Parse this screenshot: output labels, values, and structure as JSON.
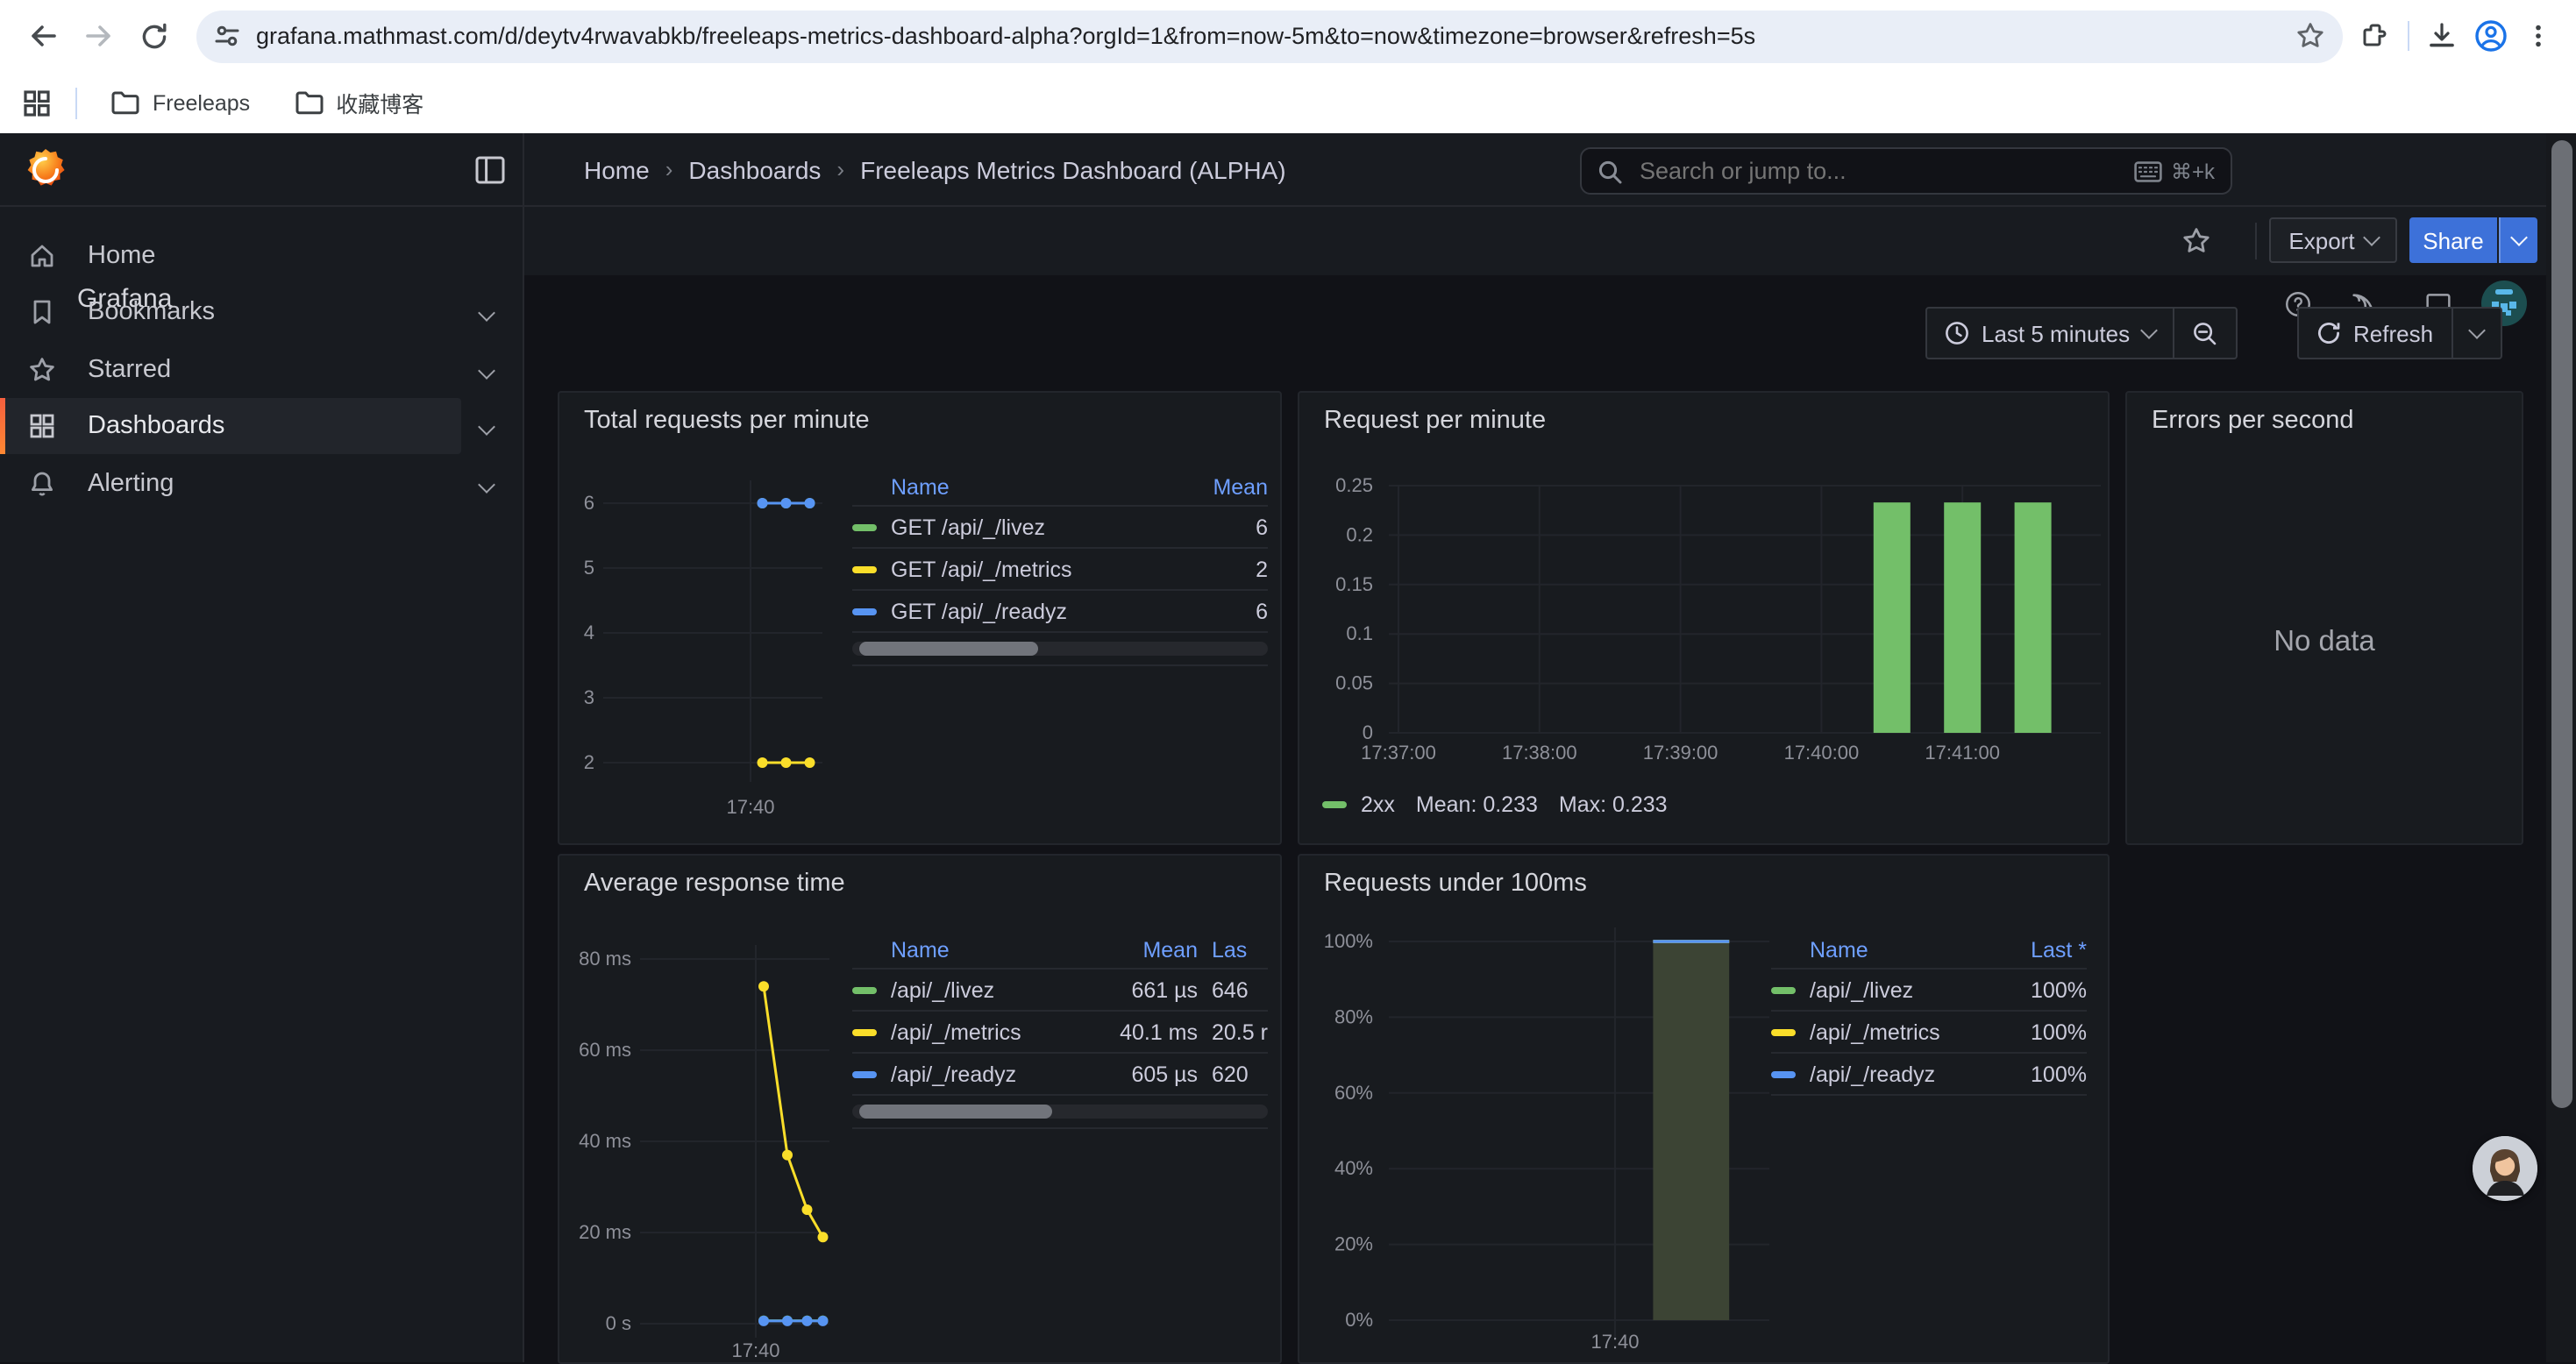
{
  "browser": {
    "url": "grafana.mathmast.com/d/deytv4rwavabkb/freeleaps-metrics-dashboard-alpha?orgId=1&from=now-5m&to=now&timezone=browser&refresh=5s",
    "bookmarks": [
      {
        "label": "Freeleaps"
      },
      {
        "label": "收藏博客"
      }
    ]
  },
  "icons": {
    "browser": [
      "back-arrow",
      "forward-arrow",
      "reload",
      "tune",
      "bookmark-star",
      "extensions-puzzle",
      "download",
      "profile",
      "kebab-menu",
      "apps-grid",
      "folder"
    ],
    "grafana": [
      "grafana-logo",
      "sidebar-toggle",
      "home",
      "bookmark",
      "star",
      "dashboards-grid",
      "alerting-bell",
      "search-magnifier",
      "keyboard",
      "help-circle",
      "rss",
      "monitor",
      "user-avatar",
      "clock",
      "zoom-out-magnifier",
      "refresh-arrows"
    ]
  },
  "sidebar": {
    "brand": "Grafana",
    "items": [
      {
        "label": "Home",
        "expandable": false,
        "active": false
      },
      {
        "label": "Bookmarks",
        "expandable": true,
        "active": false
      },
      {
        "label": "Starred",
        "expandable": true,
        "active": false
      },
      {
        "label": "Dashboards",
        "expandable": true,
        "active": true
      },
      {
        "label": "Alerting",
        "expandable": true,
        "active": false
      }
    ]
  },
  "header": {
    "breadcrumb": [
      {
        "label": "Home"
      },
      {
        "label": "Dashboards"
      },
      {
        "label": "Freeleaps Metrics Dashboard (ALPHA)"
      }
    ],
    "breadcrumb_separator": "›",
    "search": {
      "placeholder": "Search or jump to...",
      "shortcut": "⌘+k"
    }
  },
  "dash_toolbar": {
    "export_label": "Export",
    "share_label": "Share"
  },
  "time_controls": {
    "range_label": "Last 5 minutes",
    "refresh_label": "Refresh"
  },
  "colors": {
    "green": "#73BF69",
    "yellow": "#FADE2A",
    "blue": "#5794F2",
    "primary_button_blue": "#3D71D9",
    "table_header_blue": "#6E9FFF",
    "active_item_orange": "#FF8833",
    "profile_icon_blue": "#1A73E8"
  },
  "panels": {
    "total_requests": {
      "title": "Total requests per minute",
      "table": {
        "headers": [
          "Name",
          "Mean"
        ],
        "rows": [
          {
            "color": "#73BF69",
            "name": "GET /api/_/livez",
            "mean": "6"
          },
          {
            "color": "#FADE2A",
            "name": "GET /api/_/metrics",
            "mean": "2"
          },
          {
            "color": "#5794F2",
            "name": "GET /api/_/readyz",
            "mean": "6"
          }
        ]
      }
    },
    "request_per_minute": {
      "title": "Request per minute",
      "legend": {
        "color": "#73BF69",
        "name": "2xx",
        "mean": "Mean: 0.233",
        "max": "Max: 0.233"
      }
    },
    "errors_per_second": {
      "title": "Errors per second",
      "message": "No data"
    },
    "avg_response_time": {
      "title": "Average response time",
      "table": {
        "headers": [
          "Name",
          "Mean",
          "Las"
        ],
        "rows": [
          {
            "color": "#73BF69",
            "name": "/api/_/livez",
            "mean": "661 µs",
            "last": "646"
          },
          {
            "color": "#FADE2A",
            "name": "/api/_/metrics",
            "mean": "40.1 ms",
            "last": "20.5 r"
          },
          {
            "color": "#5794F2",
            "name": "/api/_/readyz",
            "mean": "605 µs",
            "last": "620"
          }
        ]
      }
    },
    "requests_under_100ms": {
      "title": "Requests under 100ms",
      "table": {
        "headers": [
          "Name",
          "Last *"
        ],
        "rows": [
          {
            "color": "#73BF69",
            "name": "/api/_/livez",
            "last": "100%"
          },
          {
            "color": "#FADE2A",
            "name": "/api/_/metrics",
            "last": "100%"
          },
          {
            "color": "#5794F2",
            "name": "/api/_/readyz",
            "last": "100%"
          }
        ]
      }
    }
  },
  "chart_data": [
    {
      "panel": "Total requests per minute",
      "type": "line",
      "x_axis": {
        "ticks": [
          "17:40"
        ]
      },
      "y_axis": {
        "ticks": [
          {
            "label": "6",
            "v": 6
          },
          {
            "label": "5",
            "v": 5
          },
          {
            "label": "4",
            "v": 4
          },
          {
            "label": "3",
            "v": 3
          },
          {
            "label": "2",
            "v": 2
          }
        ]
      },
      "series": [
        {
          "name": "GET /api/_/livez",
          "color": "#73BF69",
          "points": [
            {
              "t": "17:40:15",
              "v": 6
            },
            {
              "t": "17:40:45",
              "v": 6
            },
            {
              "t": "17:41:15",
              "v": 6
            }
          ]
        },
        {
          "name": "GET /api/_/metrics",
          "color": "#FADE2A",
          "points": [
            {
              "t": "17:40:15",
              "v": 2
            },
            {
              "t": "17:40:45",
              "v": 2
            },
            {
              "t": "17:41:15",
              "v": 2
            }
          ]
        },
        {
          "name": "GET /api/_/readyz",
          "color": "#5794F2",
          "points": [
            {
              "t": "17:40:15",
              "v": 6
            },
            {
              "t": "17:40:45",
              "v": 6
            },
            {
              "t": "17:41:15",
              "v": 6
            }
          ]
        }
      ],
      "note": "green livez line hidden beneath blue readyz line at y=6"
    },
    {
      "panel": "Request per minute",
      "type": "bar",
      "x_axis": {
        "ticks": [
          "17:37:00",
          "17:38:00",
          "17:39:00",
          "17:40:00",
          "17:41:00"
        ]
      },
      "y_axis": {
        "range": [
          0,
          0.25
        ],
        "ticks": [
          {
            "label": "0.25",
            "v": 0.25
          },
          {
            "label": "0.2",
            "v": 0.2
          },
          {
            "label": "0.15",
            "v": 0.15
          },
          {
            "label": "0.1",
            "v": 0.1
          },
          {
            "label": "0.05",
            "v": 0.05
          },
          {
            "label": "0",
            "v": 0
          }
        ]
      },
      "series": [
        {
          "name": "2xx",
          "color": "#73BF69",
          "mean": 0.233,
          "max": 0.233,
          "points": [
            {
              "t": "17:40:30",
              "v": 0.233
            },
            {
              "t": "17:41:00",
              "v": 0.233
            },
            {
              "t": "17:41:30",
              "v": 0.233
            }
          ]
        }
      ]
    },
    {
      "panel": "Errors per second",
      "type": "none",
      "message": "No data"
    },
    {
      "panel": "Average response time",
      "type": "line",
      "x_axis": {
        "ticks": [
          "17:40"
        ]
      },
      "y_axis": {
        "range_ms": [
          0,
          80
        ],
        "ticks": [
          {
            "label": "80 ms",
            "v": 80
          },
          {
            "label": "60 ms",
            "v": 60
          },
          {
            "label": "40 ms",
            "v": 40
          },
          {
            "label": "20 ms",
            "v": 20
          },
          {
            "label": "0 s",
            "v": 0
          }
        ]
      },
      "series": [
        {
          "name": "/api/_/metrics",
          "color": "#FADE2A",
          "points": [
            {
              "t": "17:40:10",
              "v": 74
            },
            {
              "t": "17:40:40",
              "v": 37
            },
            {
              "t": "17:41:05",
              "v": 25
            },
            {
              "t": "17:41:25",
              "v": 19
            }
          ]
        },
        {
          "name": "/api/_/livez",
          "color": "#73BF69",
          "points": [
            {
              "t": "17:40:10",
              "v": 0.66
            },
            {
              "t": "17:40:40",
              "v": 0.66
            },
            {
              "t": "17:41:05",
              "v": 0.66
            },
            {
              "t": "17:41:25",
              "v": 0.66
            }
          ]
        },
        {
          "name": "/api/_/readyz",
          "color": "#5794F2",
          "points": [
            {
              "t": "17:40:10",
              "v": 0.6
            },
            {
              "t": "17:40:40",
              "v": 0.6
            },
            {
              "t": "17:41:05",
              "v": 0.6
            },
            {
              "t": "17:41:25",
              "v": 0.6
            }
          ]
        }
      ]
    },
    {
      "panel": "Requests under 100ms",
      "type": "bar",
      "x_axis": {
        "ticks": [
          "17:40"
        ]
      },
      "y_axis": {
        "range_pct": [
          0,
          100
        ],
        "ticks": [
          {
            "label": "100%",
            "v": 100
          },
          {
            "label": "80%",
            "v": 80
          },
          {
            "label": "60%",
            "v": 60
          },
          {
            "label": "40%",
            "v": 40
          },
          {
            "label": "20%",
            "v": 20
          },
          {
            "label": "0%",
            "v": 0
          }
        ]
      },
      "bar_fill": "#3c4434",
      "bar_top_color": "#5794F2",
      "series": [
        {
          "name": "/api/_/livez",
          "color": "#73BF69",
          "points": [
            {
              "t_start": "17:40:30",
              "t_end": "17:41:30",
              "v": 100
            }
          ]
        },
        {
          "name": "/api/_/metrics",
          "color": "#FADE2A",
          "points": [
            {
              "t_start": "17:40:30",
              "t_end": "17:41:30",
              "v": 100
            }
          ]
        },
        {
          "name": "/api/_/readyz",
          "color": "#5794F2",
          "points": [
            {
              "t_start": "17:40:30",
              "t_end": "17:41:30",
              "v": 100
            }
          ]
        }
      ]
    }
  ]
}
